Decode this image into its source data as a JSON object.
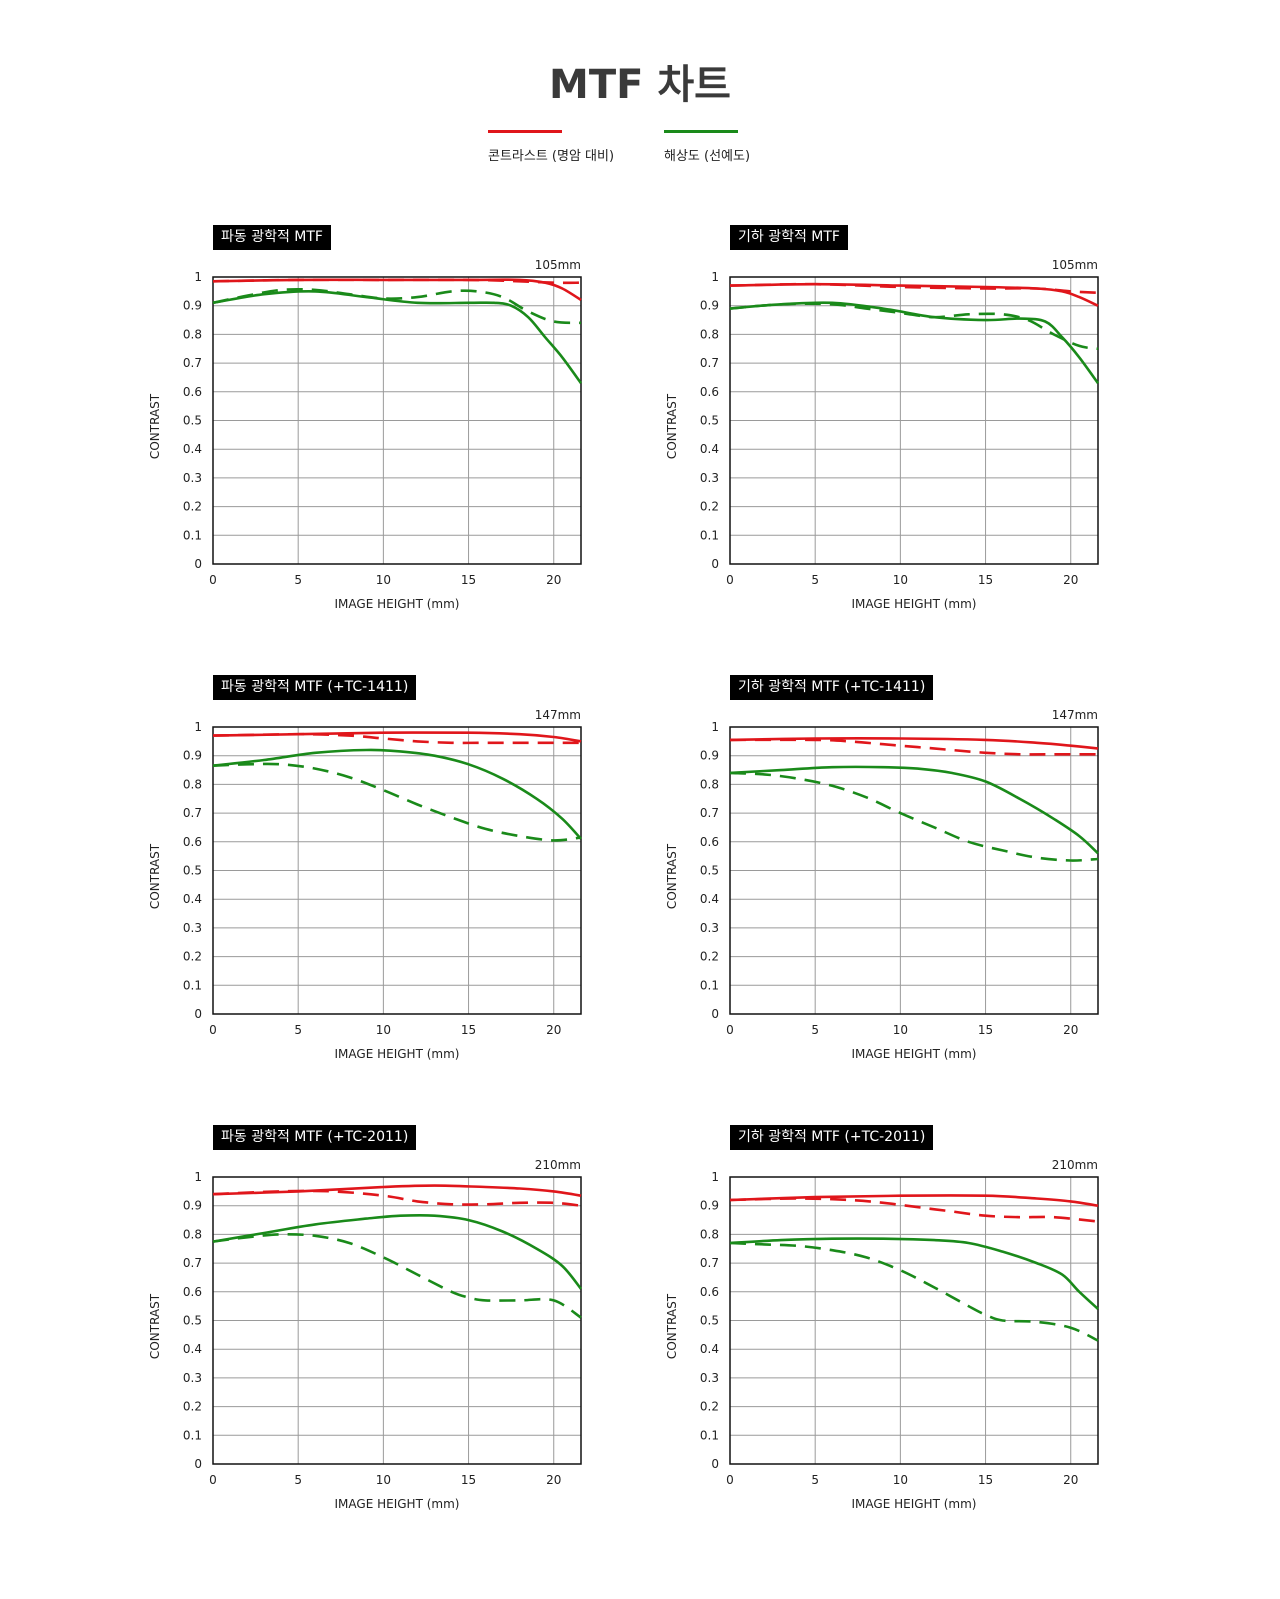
{
  "page": {
    "title": "MTF 차트",
    "legend": [
      {
        "label": "콘트라스트 (명암 대비)",
        "color": "#e0161b"
      },
      {
        "label": "해상도 (선예도)",
        "color": "#1a8a1a"
      }
    ]
  },
  "axes": {
    "xlabel": "IMAGE HEIGHT (mm)",
    "ylabel": "CONTRAST",
    "xticks": [
      "0",
      "5",
      "10",
      "15",
      "20"
    ],
    "yticks": [
      "0",
      "0.1",
      "0.2",
      "0.3",
      "0.4",
      "0.5",
      "0.6",
      "0.7",
      "0.8",
      "0.9",
      "1"
    ]
  },
  "chart_data": [
    {
      "type": "line",
      "title": "파동 광학적 MTF",
      "focal": "105mm",
      "xlim": [
        0,
        21.6
      ],
      "ylim": [
        0,
        1
      ],
      "grid": true,
      "series": [
        {
          "color": "#e0161b",
          "dash": false,
          "x": [
            0,
            5,
            10,
            15,
            18,
            19.5,
            20.5,
            21.6
          ],
          "y": [
            0.985,
            0.99,
            0.99,
            0.99,
            0.99,
            0.98,
            0.96,
            0.92
          ]
        },
        {
          "color": "#e0161b",
          "dash": true,
          "x": [
            0,
            5,
            10,
            15,
            18,
            20,
            21.6
          ],
          "y": [
            0.985,
            0.99,
            0.99,
            0.99,
            0.985,
            0.98,
            0.98
          ]
        },
        {
          "color": "#1a8a1a",
          "dash": false,
          "x": [
            0,
            3,
            6,
            9,
            12,
            15,
            16.5,
            17.5,
            18.5,
            19.5,
            20.5,
            21.6
          ],
          "y": [
            0.91,
            0.94,
            0.95,
            0.93,
            0.91,
            0.91,
            0.91,
            0.9,
            0.86,
            0.79,
            0.72,
            0.63
          ]
        },
        {
          "color": "#1a8a1a",
          "dash": true,
          "x": [
            0,
            2,
            4,
            6,
            8,
            10,
            12,
            14,
            15.5,
            17,
            18.5,
            20,
            21.6
          ],
          "y": [
            0.91,
            0.935,
            0.955,
            0.955,
            0.94,
            0.925,
            0.93,
            0.95,
            0.95,
            0.93,
            0.88,
            0.845,
            0.84
          ]
        }
      ]
    },
    {
      "type": "line",
      "title": "기하 광학적 MTF",
      "focal": "105mm",
      "xlim": [
        0,
        21.6
      ],
      "ylim": [
        0,
        1
      ],
      "grid": true,
      "series": [
        {
          "color": "#e0161b",
          "dash": false,
          "x": [
            0,
            5,
            10,
            15,
            18,
            19.5,
            20.5,
            21.6
          ],
          "y": [
            0.97,
            0.975,
            0.97,
            0.965,
            0.96,
            0.95,
            0.93,
            0.9
          ]
        },
        {
          "color": "#e0161b",
          "dash": true,
          "x": [
            0,
            5,
            10,
            15,
            18,
            20,
            21.6
          ],
          "y": [
            0.97,
            0.975,
            0.965,
            0.96,
            0.96,
            0.95,
            0.945
          ]
        },
        {
          "color": "#1a8a1a",
          "dash": false,
          "x": [
            0,
            3,
            6,
            9,
            12,
            15,
            17,
            18.5,
            19.5,
            20.5,
            21.6
          ],
          "y": [
            0.89,
            0.905,
            0.91,
            0.89,
            0.86,
            0.85,
            0.855,
            0.845,
            0.79,
            0.72,
            0.63
          ]
        },
        {
          "color": "#1a8a1a",
          "dash": true,
          "x": [
            0,
            3,
            6,
            8,
            10,
            12,
            14,
            16,
            17.5,
            19,
            20.5,
            21.6
          ],
          "y": [
            0.89,
            0.905,
            0.905,
            0.89,
            0.875,
            0.86,
            0.87,
            0.87,
            0.85,
            0.8,
            0.76,
            0.75
          ]
        }
      ]
    },
    {
      "type": "line",
      "title": "파동 광학적 MTF (+TC-1411)",
      "focal": "147mm",
      "xlim": [
        0,
        21.6
      ],
      "ylim": [
        0,
        1
      ],
      "grid": true,
      "series": [
        {
          "color": "#e0161b",
          "dash": false,
          "x": [
            0,
            5,
            10,
            15,
            18,
            20,
            21.6
          ],
          "y": [
            0.97,
            0.975,
            0.98,
            0.98,
            0.975,
            0.965,
            0.95
          ]
        },
        {
          "color": "#e0161b",
          "dash": true,
          "x": [
            0,
            5,
            8,
            10,
            12,
            14,
            16,
            18,
            20,
            21.6
          ],
          "y": [
            0.97,
            0.975,
            0.97,
            0.96,
            0.95,
            0.945,
            0.945,
            0.945,
            0.945,
            0.945
          ]
        },
        {
          "color": "#1a8a1a",
          "dash": false,
          "x": [
            0,
            3,
            6,
            9,
            11,
            13,
            15,
            17,
            19,
            20.5,
            21.6
          ],
          "y": [
            0.865,
            0.885,
            0.91,
            0.92,
            0.915,
            0.9,
            0.87,
            0.82,
            0.75,
            0.68,
            0.61
          ]
        },
        {
          "color": "#1a8a1a",
          "dash": true,
          "x": [
            0,
            2,
            4,
            6,
            8,
            10,
            12,
            14,
            16,
            18,
            20,
            21.6
          ],
          "y": [
            0.865,
            0.87,
            0.87,
            0.855,
            0.825,
            0.78,
            0.73,
            0.685,
            0.645,
            0.62,
            0.605,
            0.615
          ]
        }
      ]
    },
    {
      "type": "line",
      "title": "기하 광학적 MTF (+TC-1411)",
      "focal": "147mm",
      "xlim": [
        0,
        21.6
      ],
      "ylim": [
        0,
        1
      ],
      "grid": true,
      "series": [
        {
          "color": "#e0161b",
          "dash": false,
          "x": [
            0,
            5,
            10,
            15,
            18,
            20,
            21.6
          ],
          "y": [
            0.955,
            0.96,
            0.96,
            0.955,
            0.945,
            0.935,
            0.925
          ]
        },
        {
          "color": "#e0161b",
          "dash": true,
          "x": [
            0,
            5,
            7,
            9,
            11,
            13,
            15,
            17,
            19,
            21.6
          ],
          "y": [
            0.955,
            0.955,
            0.95,
            0.94,
            0.93,
            0.92,
            0.91,
            0.905,
            0.905,
            0.905
          ]
        },
        {
          "color": "#1a8a1a",
          "dash": false,
          "x": [
            0,
            3,
            6,
            9,
            11,
            13,
            15,
            17,
            19,
            20.5,
            21.6
          ],
          "y": [
            0.84,
            0.85,
            0.86,
            0.86,
            0.855,
            0.84,
            0.81,
            0.75,
            0.68,
            0.62,
            0.56
          ]
        },
        {
          "color": "#1a8a1a",
          "dash": true,
          "x": [
            0,
            2,
            4,
            6,
            8,
            10,
            12,
            14,
            16,
            18,
            20,
            21.6
          ],
          "y": [
            0.84,
            0.835,
            0.82,
            0.795,
            0.755,
            0.7,
            0.65,
            0.6,
            0.57,
            0.545,
            0.535,
            0.54
          ]
        }
      ]
    },
    {
      "type": "line",
      "title": "파동 광학적 MTF (+TC-2011)",
      "focal": "210mm",
      "xlim": [
        0,
        21.6
      ],
      "ylim": [
        0,
        1
      ],
      "grid": true,
      "series": [
        {
          "color": "#e0161b",
          "dash": false,
          "x": [
            0,
            5,
            10,
            13,
            16,
            18,
            20,
            21.6
          ],
          "y": [
            0.94,
            0.95,
            0.965,
            0.97,
            0.965,
            0.96,
            0.95,
            0.935
          ]
        },
        {
          "color": "#e0161b",
          "dash": true,
          "x": [
            0,
            4,
            7,
            10,
            12,
            14,
            16,
            18,
            20,
            21.6
          ],
          "y": [
            0.94,
            0.95,
            0.95,
            0.935,
            0.915,
            0.905,
            0.905,
            0.91,
            0.91,
            0.9
          ]
        },
        {
          "color": "#1a8a1a",
          "dash": false,
          "x": [
            0,
            3,
            6,
            9,
            11,
            13,
            15,
            17,
            19,
            20.5,
            21.6
          ],
          "y": [
            0.775,
            0.805,
            0.835,
            0.855,
            0.865,
            0.865,
            0.85,
            0.81,
            0.75,
            0.69,
            0.61
          ]
        },
        {
          "color": "#1a8a1a",
          "dash": true,
          "x": [
            0,
            2,
            4,
            6,
            8,
            10,
            12,
            14,
            15,
            16,
            18,
            20,
            21.6
          ],
          "y": [
            0.775,
            0.79,
            0.8,
            0.795,
            0.77,
            0.72,
            0.66,
            0.6,
            0.58,
            0.57,
            0.57,
            0.57,
            0.51
          ]
        }
      ]
    },
    {
      "type": "line",
      "title": "기하 광학적 MTF (+TC-2011)",
      "focal": "210mm",
      "xlim": [
        0,
        21.6
      ],
      "ylim": [
        0,
        1
      ],
      "grid": true,
      "series": [
        {
          "color": "#e0161b",
          "dash": false,
          "x": [
            0,
            5,
            10,
            15,
            18,
            20,
            21.6
          ],
          "y": [
            0.92,
            0.93,
            0.935,
            0.935,
            0.925,
            0.915,
            0.9
          ]
        },
        {
          "color": "#e0161b",
          "dash": true,
          "x": [
            0,
            4,
            7,
            9,
            11,
            13,
            15,
            17,
            19,
            21.6
          ],
          "y": [
            0.92,
            0.925,
            0.92,
            0.91,
            0.895,
            0.88,
            0.865,
            0.86,
            0.86,
            0.845
          ]
        },
        {
          "color": "#1a8a1a",
          "dash": false,
          "x": [
            0,
            3,
            6,
            9,
            12,
            14,
            16,
            18,
            19.5,
            20.5,
            21.6
          ],
          "y": [
            0.77,
            0.78,
            0.785,
            0.785,
            0.78,
            0.77,
            0.74,
            0.7,
            0.66,
            0.6,
            0.54
          ]
        },
        {
          "color": "#1a8a1a",
          "dash": true,
          "x": [
            0,
            2,
            4,
            6,
            8,
            10,
            12,
            14,
            15,
            16,
            18,
            20,
            21.6
          ],
          "y": [
            0.77,
            0.765,
            0.76,
            0.745,
            0.72,
            0.675,
            0.615,
            0.55,
            0.52,
            0.5,
            0.495,
            0.475,
            0.43
          ]
        }
      ]
    }
  ]
}
